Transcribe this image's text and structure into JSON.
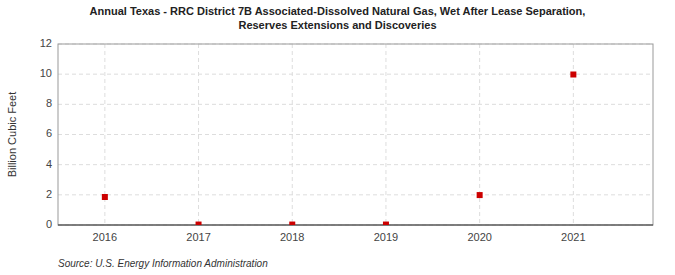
{
  "chart_data": {
    "type": "scatter",
    "title": "Annual Texas - RRC District 7B Associated-Dissolved Natural Gas, Wet After Lease Separation,\nReserves Extensions and Discoveries",
    "ylabel": "Billion Cubic Feet",
    "source": "Source: U.S. Energy Information Administration",
    "x": [
      2016,
      2017,
      2018,
      2019,
      2020,
      2021
    ],
    "values": [
      1.856,
      0.03,
      0.03,
      0.03,
      1.984,
      9.978
    ],
    "xlim": [
      2015.5,
      2021.85
    ],
    "ylim": [
      0,
      12
    ],
    "xticks": [
      2016,
      2017,
      2018,
      2019,
      2020,
      2021
    ],
    "yticks": [
      0,
      2,
      4,
      6,
      8,
      10,
      12
    ],
    "grid": true,
    "color": "#cc0000",
    "marker": "square"
  }
}
